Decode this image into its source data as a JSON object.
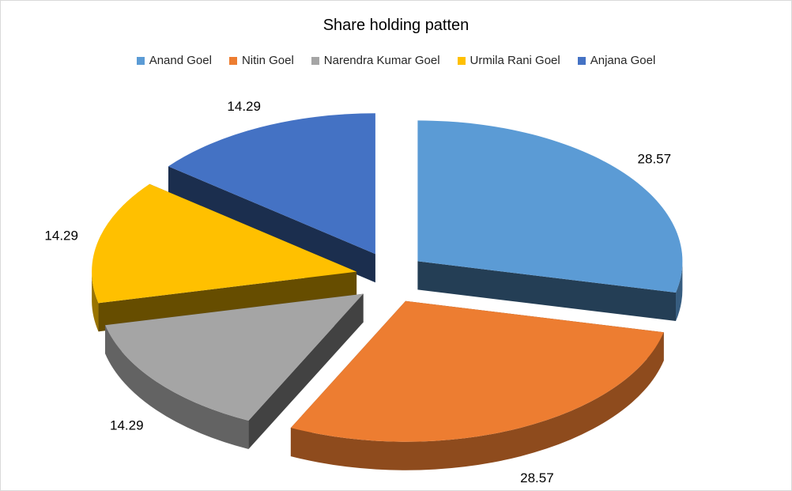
{
  "chart_data": {
    "type": "pie",
    "title": "Share holding patten",
    "legend_position": "top",
    "slices": [
      {
        "name": "Anand Goel",
        "value": 28.57,
        "label": "28.57",
        "color": "#5b9bd5"
      },
      {
        "name": "Nitin Goel",
        "value": 28.57,
        "label": "28.57",
        "color": "#ed7d31"
      },
      {
        "name": "Narendra Kumar Goel",
        "value": 14.29,
        "label": "14.29",
        "color": "#a5a5a5"
      },
      {
        "name": "Urmila Rani Goel",
        "value": 14.29,
        "label": "14.29",
        "color": "#ffc000"
      },
      {
        "name": "Anjana Goel",
        "value": 14.29,
        "label": "14.29",
        "color": "#4472c4"
      }
    ]
  }
}
